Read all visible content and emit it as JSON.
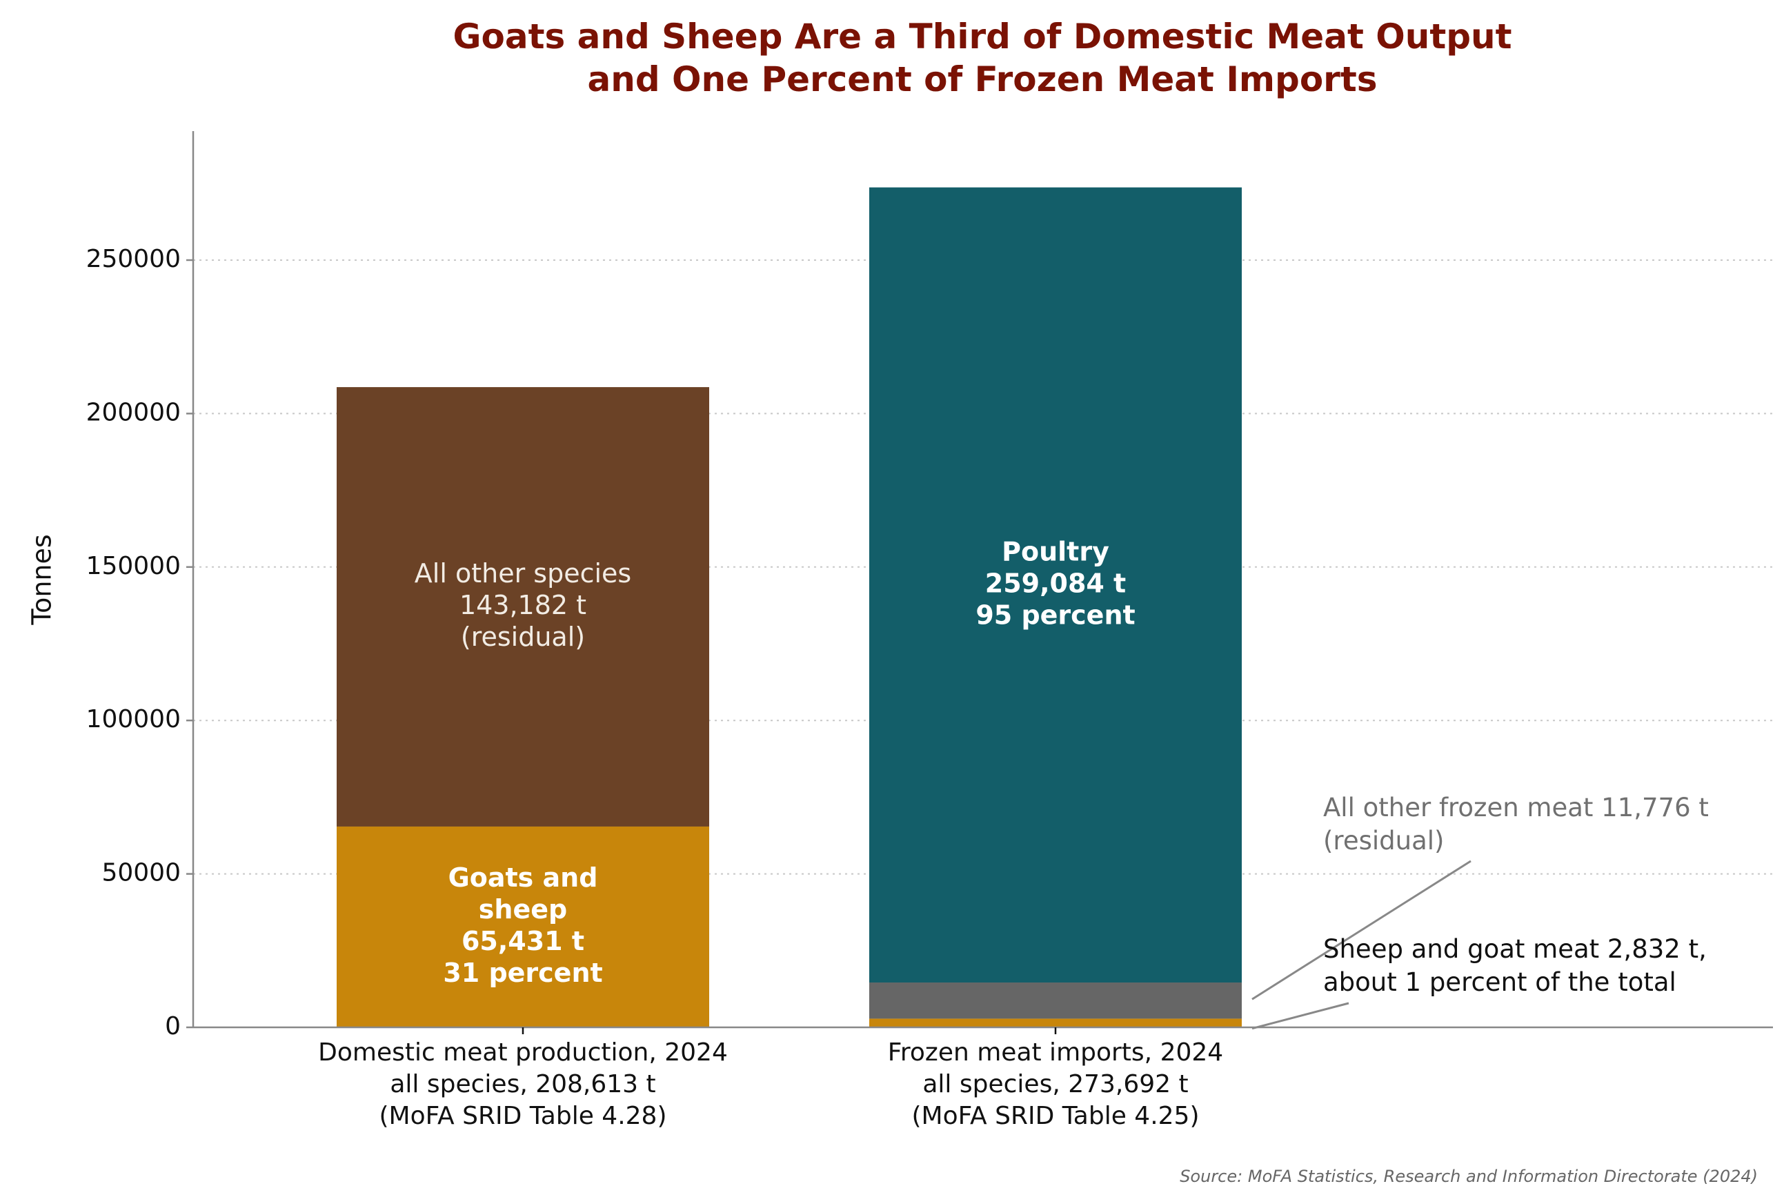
{
  "chart_data": {
    "type": "bar",
    "stacked": true,
    "title": [
      "Goats and Sheep Are a Third of Domestic Meat Output",
      "and One Percent of Frozen Meat Imports"
    ],
    "ylabel": "Tonnes",
    "ylim": [
      0,
      292000
    ],
    "yticks": [
      0,
      50000,
      100000,
      150000,
      200000,
      250000
    ],
    "grid": "horizontal-dotted",
    "categories": [
      [
        "Domestic meat production, 2024",
        "all species, 208,613 t",
        "(MoFA SRID Table 4.28)"
      ],
      [
        "Frozen meat imports, 2024",
        "all species, 273,692 t",
        "(MoFA SRID Table 4.25)"
      ]
    ],
    "bars": [
      {
        "segments": [
          {
            "value": 65431,
            "color": "#c8860b",
            "label": [
              "Goats and",
              "sheep",
              "65,431 t",
              "31 percent"
            ],
            "bold": true
          },
          {
            "value": 143182,
            "color": "#6b4226",
            "label": [
              "All other species",
              "143,182 t",
              "(residual)"
            ],
            "bold": false
          }
        ]
      },
      {
        "segments": [
          {
            "value": 2832,
            "color": "#c8860b",
            "label": [],
            "bold": false
          },
          {
            "value": 11776,
            "color": "#666666",
            "label": [],
            "bold": false
          },
          {
            "value": 259084,
            "color": "#135e69",
            "label": [
              "Poultry",
              "259,084 t",
              "95 percent"
            ],
            "bold": true
          }
        ]
      }
    ],
    "annotations": [
      {
        "text": [
          "All other frozen meat 11,776 t",
          "(residual)"
        ],
        "color": "#707070",
        "points_to": "Frozen meat imports: all other frozen meat"
      },
      {
        "text": [
          "Sheep and goat meat 2,832 t,",
          "about 1 percent of the total"
        ],
        "color": "#111111",
        "points_to": "Frozen meat imports: sheep and goat meat"
      }
    ],
    "source": "Source: MoFA Statistics, Research and Information Directorate (2024)"
  }
}
